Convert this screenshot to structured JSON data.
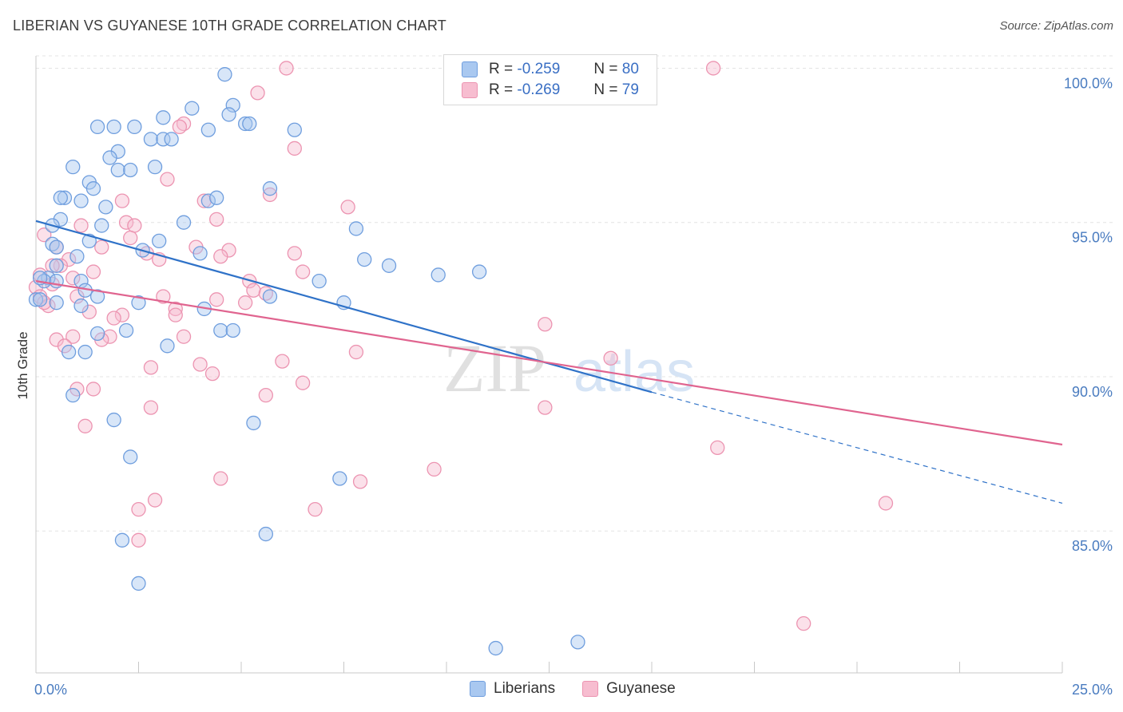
{
  "header": {
    "title": "LIBERIAN VS GUYANESE 10TH GRADE CORRELATION CHART",
    "source": "Source: ZipAtlas.com"
  },
  "legend": {
    "r_label": "R =",
    "n_label": "N =",
    "rows": [
      {
        "r": "-0.259",
        "n": "80"
      },
      {
        "r": "-0.269",
        "n": "79"
      }
    ]
  },
  "colors": {
    "liberians_fill": "#a9c8f0",
    "liberians_stroke": "#6f9ede",
    "liberians_line": "#2f72c8",
    "guyanese_fill": "#f7bdd0",
    "guyanese_stroke": "#ec94b1",
    "guyanese_line": "#e0648f",
    "tick_text": "#4a7cc0"
  },
  "watermark": {
    "part1": "ZIP",
    "part2": "atlas"
  },
  "chart_data": {
    "type": "scatter",
    "ylabel": "10th Grade",
    "xlim": [
      0,
      25
    ],
    "ylim": [
      80.4,
      100.4
    ],
    "y_ticks": [
      {
        "v": 85,
        "label": "85.0%"
      },
      {
        "v": 90,
        "label": "90.0%"
      },
      {
        "v": 95,
        "label": "95.0%"
      },
      {
        "v": 100,
        "label": "100.0%"
      }
    ],
    "x_tick_labels": [
      {
        "v": 0,
        "label": "0.0%"
      },
      {
        "v": 25,
        "label": "25.0%"
      }
    ],
    "x_minor_ticks": [
      2.5,
      5,
      7.5,
      10,
      12.5,
      15,
      17.5,
      20,
      22.5,
      25
    ],
    "grid": true,
    "legend_position": "bottom-center",
    "series": [
      {
        "name": "Liberians",
        "trend": {
          "x0": 0,
          "y0": 95.05,
          "x1": 15,
          "y1": 89.5,
          "dashed_to_x": 25,
          "dashed_to_y": 85.9
        },
        "points": [
          [
            4.6,
            99.8
          ],
          [
            4.8,
            98.8
          ],
          [
            3.8,
            98.7
          ],
          [
            4.7,
            98.5
          ],
          [
            3.1,
            98.4
          ],
          [
            5.1,
            98.2
          ],
          [
            5.2,
            98.2
          ],
          [
            1.5,
            98.1
          ],
          [
            1.9,
            98.1
          ],
          [
            2.4,
            98.1
          ],
          [
            4.2,
            98.0
          ],
          [
            6.3,
            98.0
          ],
          [
            2.8,
            97.7
          ],
          [
            3.1,
            97.7
          ],
          [
            3.3,
            97.7
          ],
          [
            2.0,
            97.3
          ],
          [
            1.8,
            97.1
          ],
          [
            0.9,
            96.8
          ],
          [
            2.0,
            96.7
          ],
          [
            2.3,
            96.7
          ],
          [
            2.9,
            96.8
          ],
          [
            1.3,
            96.3
          ],
          [
            1.4,
            96.1
          ],
          [
            5.7,
            96.1
          ],
          [
            0.7,
            95.8
          ],
          [
            0.6,
            95.8
          ],
          [
            1.1,
            95.7
          ],
          [
            4.2,
            95.7
          ],
          [
            4.4,
            95.8
          ],
          [
            1.7,
            95.5
          ],
          [
            0.6,
            95.1
          ],
          [
            3.6,
            95.0
          ],
          [
            0.4,
            94.9
          ],
          [
            1.6,
            94.9
          ],
          [
            7.8,
            94.8
          ],
          [
            1.3,
            94.4
          ],
          [
            3.0,
            94.4
          ],
          [
            0.4,
            94.3
          ],
          [
            0.5,
            94.2
          ],
          [
            2.6,
            94.1
          ],
          [
            4.0,
            94.0
          ],
          [
            1.0,
            93.9
          ],
          [
            8.0,
            93.8
          ],
          [
            8.6,
            93.6
          ],
          [
            0.5,
            93.6
          ],
          [
            0.3,
            93.2
          ],
          [
            0.2,
            93.1
          ],
          [
            0.5,
            93.1
          ],
          [
            1.1,
            93.1
          ],
          [
            6.9,
            93.1
          ],
          [
            9.8,
            93.3
          ],
          [
            10.8,
            93.4
          ],
          [
            1.2,
            92.8
          ],
          [
            1.5,
            92.6
          ],
          [
            5.7,
            92.6
          ],
          [
            0.0,
            92.5
          ],
          [
            0.5,
            92.4
          ],
          [
            1.1,
            92.3
          ],
          [
            2.5,
            92.4
          ],
          [
            4.1,
            92.2
          ],
          [
            7.5,
            92.4
          ],
          [
            2.2,
            91.5
          ],
          [
            4.5,
            91.5
          ],
          [
            4.8,
            91.5
          ],
          [
            1.5,
            91.4
          ],
          [
            3.2,
            91.0
          ],
          [
            0.8,
            90.8
          ],
          [
            1.2,
            90.8
          ],
          [
            0.9,
            89.4
          ],
          [
            1.9,
            88.6
          ],
          [
            5.3,
            88.5
          ],
          [
            2.3,
            87.4
          ],
          [
            7.4,
            86.7
          ],
          [
            2.1,
            84.7
          ],
          [
            5.6,
            84.9
          ],
          [
            2.5,
            83.3
          ],
          [
            11.2,
            81.2
          ],
          [
            13.2,
            81.4
          ],
          [
            0.1,
            93.2
          ],
          [
            0.1,
            92.5
          ]
        ]
      },
      {
        "name": "Guyanese",
        "trend": {
          "x0": 0,
          "y0": 93.1,
          "x1": 25,
          "y1": 87.8
        },
        "points": [
          [
            6.1,
            100.0
          ],
          [
            16.5,
            100.0
          ],
          [
            5.4,
            99.2
          ],
          [
            3.6,
            98.2
          ],
          [
            3.5,
            98.1
          ],
          [
            6.3,
            97.4
          ],
          [
            3.2,
            96.4
          ],
          [
            2.1,
            95.7
          ],
          [
            4.1,
            95.7
          ],
          [
            5.7,
            95.9
          ],
          [
            7.6,
            95.5
          ],
          [
            4.4,
            95.1
          ],
          [
            2.2,
            95.0
          ],
          [
            2.4,
            94.9
          ],
          [
            1.1,
            94.9
          ],
          [
            0.2,
            94.6
          ],
          [
            2.3,
            94.5
          ],
          [
            3.9,
            94.2
          ],
          [
            1.6,
            94.2
          ],
          [
            4.7,
            94.1
          ],
          [
            0.5,
            94.2
          ],
          [
            2.7,
            94.0
          ],
          [
            3.0,
            93.8
          ],
          [
            6.3,
            94.0
          ],
          [
            0.8,
            93.8
          ],
          [
            4.5,
            93.9
          ],
          [
            0.6,
            93.6
          ],
          [
            0.4,
            93.6
          ],
          [
            1.4,
            93.4
          ],
          [
            0.9,
            93.2
          ],
          [
            6.5,
            93.4
          ],
          [
            5.2,
            93.1
          ],
          [
            0.4,
            93.0
          ],
          [
            0.0,
            92.9
          ],
          [
            5.3,
            92.8
          ],
          [
            5.6,
            92.7
          ],
          [
            1.0,
            92.6
          ],
          [
            3.1,
            92.6
          ],
          [
            4.4,
            92.5
          ],
          [
            5.1,
            92.4
          ],
          [
            3.4,
            92.2
          ],
          [
            3.4,
            92.0
          ],
          [
            1.3,
            92.1
          ],
          [
            2.1,
            92.0
          ],
          [
            1.9,
            91.9
          ],
          [
            12.4,
            91.7
          ],
          [
            0.9,
            91.3
          ],
          [
            1.8,
            91.3
          ],
          [
            1.6,
            91.2
          ],
          [
            0.5,
            91.2
          ],
          [
            3.6,
            91.3
          ],
          [
            0.7,
            91.0
          ],
          [
            7.8,
            90.8
          ],
          [
            14.0,
            90.6
          ],
          [
            6.0,
            90.5
          ],
          [
            4.0,
            90.4
          ],
          [
            2.8,
            90.3
          ],
          [
            4.3,
            90.1
          ],
          [
            6.5,
            89.8
          ],
          [
            1.0,
            89.6
          ],
          [
            1.4,
            89.6
          ],
          [
            5.6,
            89.4
          ],
          [
            2.8,
            89.0
          ],
          [
            12.4,
            89.0
          ],
          [
            1.2,
            88.4
          ],
          [
            16.6,
            87.7
          ],
          [
            9.7,
            87.0
          ],
          [
            4.5,
            86.7
          ],
          [
            7.9,
            86.6
          ],
          [
            2.9,
            86.0
          ],
          [
            2.5,
            85.7
          ],
          [
            6.8,
            85.7
          ],
          [
            20.7,
            85.9
          ],
          [
            2.5,
            84.7
          ],
          [
            18.7,
            82.0
          ],
          [
            0.1,
            92.6
          ],
          [
            0.3,
            92.3
          ],
          [
            0.1,
            93.3
          ],
          [
            0.2,
            92.4
          ]
        ]
      }
    ]
  }
}
